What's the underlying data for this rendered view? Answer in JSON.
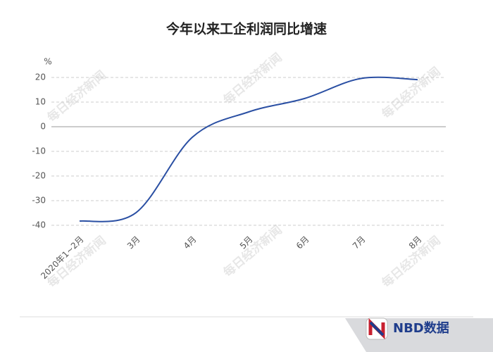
{
  "chart_data": {
    "type": "line",
    "title": "今年以来工企利润同比增速",
    "y_unit": "%",
    "categories": [
      "2020年1~2月",
      "3月",
      "4月",
      "5月",
      "6月",
      "7月",
      "8月"
    ],
    "series": [
      {
        "name": "工企利润同比增速",
        "color": "#2a4fa3",
        "values": [
          -38.3,
          -34.9,
          -4.3,
          6.0,
          11.5,
          19.6,
          19.1
        ]
      }
    ],
    "ylim": [
      -40,
      20
    ],
    "yticks": [
      -40,
      -30,
      -20,
      -10,
      0,
      10,
      20
    ],
    "grid": true,
    "watermark": "每日经济新闻",
    "footer": "NBD数据"
  }
}
